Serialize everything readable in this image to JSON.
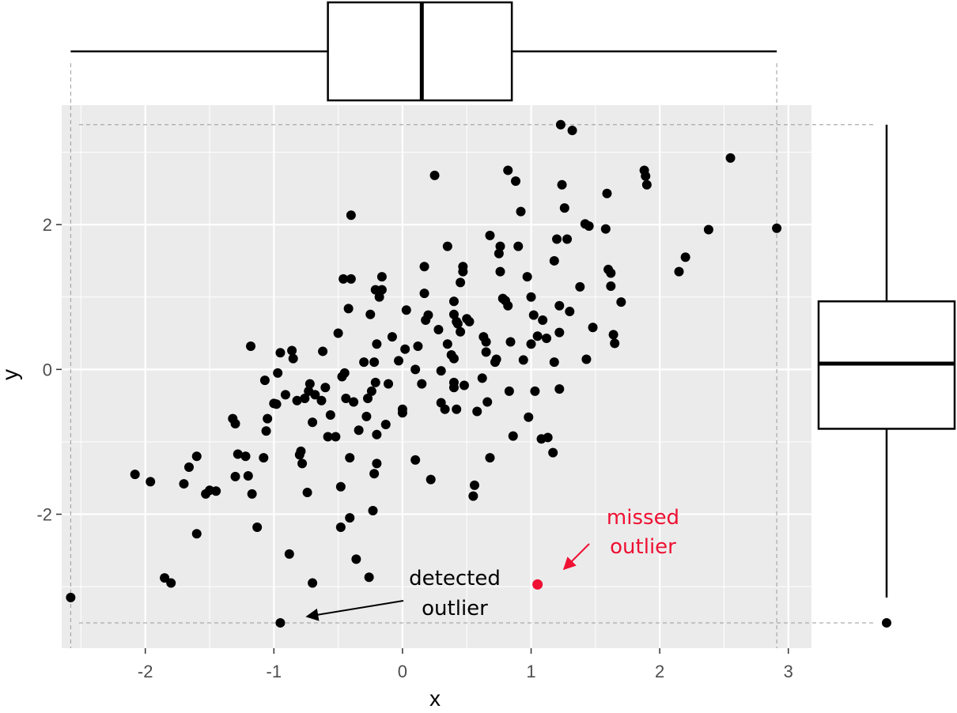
{
  "chart_data": {
    "type": "scatter",
    "title": "",
    "xlabel": "x",
    "ylabel": "y",
    "xlim": [
      -2.65,
      3.18
    ],
    "ylim": [
      -3.85,
      3.65
    ],
    "x_ticks": [
      -2,
      -1,
      0,
      1,
      2,
      3
    ],
    "y_ticks": [
      -2,
      0,
      2
    ],
    "x_tick_labels": [
      "-2",
      "-1",
      "0",
      "1",
      "2",
      "3"
    ],
    "y_tick_labels": [
      "-2",
      "0",
      "2"
    ],
    "grid": true,
    "legend": "none",
    "colors": {
      "point": "#000000",
      "highlight": "#ee1133",
      "panel": "#ebebeb",
      "grid": "#ffffff"
    },
    "points": [
      [
        -2.58,
        -3.15
      ],
      [
        -2.08,
        -1.45
      ],
      [
        -1.96,
        -1.55
      ],
      [
        -1.85,
        -2.88
      ],
      [
        -1.8,
        -2.95
      ],
      [
        -1.7,
        -1.58
      ],
      [
        -1.66,
        -1.35
      ],
      [
        -1.6,
        -1.2
      ],
      [
        -1.6,
        -2.27
      ],
      [
        -1.53,
        -1.72
      ],
      [
        -1.5,
        -1.67
      ],
      [
        -1.45,
        -1.68
      ],
      [
        -1.32,
        -0.68
      ],
      [
        -1.3,
        -0.75
      ],
      [
        -1.3,
        -1.48
      ],
      [
        -1.28,
        -1.17
      ],
      [
        -1.22,
        -1.2
      ],
      [
        -1.2,
        -1.47
      ],
      [
        -1.18,
        0.32
      ],
      [
        -1.17,
        -1.72
      ],
      [
        -1.13,
        -2.18
      ],
      [
        -1.08,
        -1.22
      ],
      [
        -1.07,
        -0.15
      ],
      [
        -1.06,
        -0.85
      ],
      [
        -1.05,
        -0.68
      ],
      [
        -1.0,
        -0.47
      ],
      [
        -0.98,
        -0.48
      ],
      [
        -0.97,
        -0.05
      ],
      [
        -0.95,
        0.23
      ],
      [
        -0.91,
        -0.35
      ],
      [
        -0.88,
        -2.55
      ],
      [
        -0.86,
        0.26
      ],
      [
        -0.85,
        0.15
      ],
      [
        -0.82,
        -0.43
      ],
      [
        -0.8,
        -1.18
      ],
      [
        -0.79,
        -1.13
      ],
      [
        -0.78,
        -1.3
      ],
      [
        -0.76,
        -0.4
      ],
      [
        -0.74,
        -1.7
      ],
      [
        -0.73,
        -0.3
      ],
      [
        -0.72,
        -0.2
      ],
      [
        -0.7,
        -0.73
      ],
      [
        -0.7,
        -2.95
      ],
      [
        -0.68,
        -0.35
      ],
      [
        -0.63,
        -0.43
      ],
      [
        -0.62,
        0.25
      ],
      [
        -0.6,
        -0.25
      ],
      [
        -0.58,
        -0.93
      ],
      [
        -0.56,
        -0.63
      ],
      [
        -0.52,
        -0.93
      ],
      [
        -0.5,
        0.5
      ],
      [
        -0.48,
        -1.62
      ],
      [
        -0.48,
        -2.18
      ],
      [
        -0.47,
        -0.1
      ],
      [
        -0.46,
        1.25
      ],
      [
        -0.45,
        -0.05
      ],
      [
        -0.44,
        -0.4
      ],
      [
        -0.42,
        0.84
      ],
      [
        -0.41,
        -1.22
      ],
      [
        -0.41,
        -2.05
      ],
      [
        -0.4,
        1.25
      ],
      [
        -0.4,
        2.13
      ],
      [
        -0.38,
        -0.45
      ],
      [
        -0.36,
        -2.62
      ],
      [
        -0.34,
        -0.84
      ],
      [
        -0.3,
        0.1
      ],
      [
        -0.28,
        -0.65
      ],
      [
        -0.27,
        -0.4
      ],
      [
        -0.26,
        -2.87
      ],
      [
        -0.25,
        0.76
      ],
      [
        -0.24,
        -0.3
      ],
      [
        -0.23,
        -1.95
      ],
      [
        -0.22,
        -1.44
      ],
      [
        -0.22,
        0.1
      ],
      [
        -0.21,
        -0.18
      ],
      [
        -0.21,
        1.1
      ],
      [
        -0.2,
        -0.9
      ],
      [
        -0.2,
        0.35
      ],
      [
        -0.2,
        -1.3
      ],
      [
        -0.18,
        1.0
      ],
      [
        -0.16,
        1.28
      ],
      [
        -0.16,
        1.1
      ],
      [
        -0.13,
        -0.76
      ],
      [
        -0.11,
        -0.2
      ],
      [
        -0.08,
        0.45
      ],
      [
        -0.03,
        0.12
      ],
      [
        0.0,
        -0.6
      ],
      [
        0.0,
        -0.55
      ],
      [
        0.02,
        0.28
      ],
      [
        0.03,
        0.82
      ],
      [
        0.1,
        0.0
      ],
      [
        0.1,
        -1.25
      ],
      [
        0.12,
        0.32
      ],
      [
        0.15,
        -0.2
      ],
      [
        0.17,
        1.05
      ],
      [
        0.17,
        1.42
      ],
      [
        0.18,
        0.68
      ],
      [
        0.2,
        0.75
      ],
      [
        0.22,
        -1.52
      ],
      [
        0.25,
        2.68
      ],
      [
        0.28,
        0.55
      ],
      [
        0.3,
        -0.02
      ],
      [
        0.3,
        -0.46
      ],
      [
        0.33,
        -0.55
      ],
      [
        0.35,
        0.35
      ],
      [
        0.35,
        1.7
      ],
      [
        0.38,
        0.2
      ],
      [
        0.4,
        0.15
      ],
      [
        0.4,
        0.94
      ],
      [
        0.4,
        0.76
      ],
      [
        0.4,
        -0.18
      ],
      [
        0.4,
        -0.25
      ],
      [
        0.42,
        -0.55
      ],
      [
        0.42,
        0.66
      ],
      [
        0.43,
        0.63
      ],
      [
        0.45,
        0.52
      ],
      [
        0.45,
        1.2
      ],
      [
        0.47,
        1.35
      ],
      [
        0.47,
        1.42
      ],
      [
        0.48,
        -0.22
      ],
      [
        0.5,
        0.7
      ],
      [
        0.52,
        0.66
      ],
      [
        0.55,
        -1.75
      ],
      [
        0.56,
        -1.6
      ],
      [
        0.58,
        -0.58
      ],
      [
        0.62,
        -0.12
      ],
      [
        0.63,
        0.45
      ],
      [
        0.65,
        0.38
      ],
      [
        0.65,
        0.24
      ],
      [
        0.66,
        -0.45
      ],
      [
        0.68,
        1.85
      ],
      [
        0.68,
        -1.22
      ],
      [
        0.72,
        0.1
      ],
      [
        0.73,
        0.14
      ],
      [
        0.75,
        1.6
      ],
      [
        0.76,
        1.35
      ],
      [
        0.76,
        1.7
      ],
      [
        0.78,
        0.98
      ],
      [
        0.8,
        0.95
      ],
      [
        0.82,
        0.88
      ],
      [
        0.82,
        2.75
      ],
      [
        0.83,
        -0.3
      ],
      [
        0.84,
        0.38
      ],
      [
        0.86,
        -0.92
      ],
      [
        0.88,
        2.6
      ],
      [
        0.9,
        1.7
      ],
      [
        0.92,
        2.18
      ],
      [
        0.94,
        0.13
      ],
      [
        0.97,
        1.28
      ],
      [
        0.98,
        -0.66
      ],
      [
        1.0,
        1.0
      ],
      [
        1.0,
        0.35
      ],
      [
        1.02,
        0.75
      ],
      [
        1.03,
        -0.3
      ],
      [
        1.05,
        0.46
      ],
      [
        1.08,
        -0.96
      ],
      [
        1.09,
        0.68
      ],
      [
        1.12,
        0.43
      ],
      [
        1.13,
        -0.94
      ],
      [
        1.17,
        -1.15
      ],
      [
        1.18,
        1.5
      ],
      [
        1.18,
        0.1
      ],
      [
        1.2,
        1.8
      ],
      [
        1.22,
        0.88
      ],
      [
        1.22,
        -0.27
      ],
      [
        1.22,
        0.51
      ],
      [
        1.23,
        3.38
      ],
      [
        1.24,
        2.55
      ],
      [
        1.26,
        2.23
      ],
      [
        1.28,
        1.8
      ],
      [
        1.3,
        0.8
      ],
      [
        1.32,
        3.3
      ],
      [
        1.38,
        1.14
      ],
      [
        1.42,
        2.01
      ],
      [
        1.43,
        0.14
      ],
      [
        1.45,
        1.98
      ],
      [
        1.48,
        0.58
      ],
      [
        1.58,
        1.94
      ],
      [
        1.59,
        2.43
      ],
      [
        1.6,
        1.38
      ],
      [
        1.62,
        1.33
      ],
      [
        1.62,
        1.15
      ],
      [
        1.64,
        0.48
      ],
      [
        1.65,
        0.36
      ],
      [
        1.7,
        0.93
      ],
      [
        1.88,
        2.75
      ],
      [
        1.89,
        2.67
      ],
      [
        1.9,
        2.55
      ],
      [
        2.15,
        1.35
      ],
      [
        2.2,
        1.55
      ],
      [
        2.38,
        1.93
      ],
      [
        2.55,
        2.92
      ],
      [
        2.91,
        1.95
      ]
    ],
    "detected_outlier": {
      "x": -0.95,
      "y": -3.5,
      "label_line1": "detected",
      "label_line2": "outlier"
    },
    "missed_outlier": {
      "x": 1.05,
      "y": -2.97,
      "label_line1": "missed",
      "label_line2": "outlier"
    },
    "x_boxplot": {
      "min": -2.58,
      "q1": -0.58,
      "median": 0.15,
      "q3": 0.85,
      "max": 2.91
    },
    "y_boxplot": {
      "min": -3.15,
      "q1": -0.82,
      "median": 0.08,
      "q3": 0.94,
      "max": 3.38,
      "outliers": [
        -3.5
      ]
    }
  }
}
